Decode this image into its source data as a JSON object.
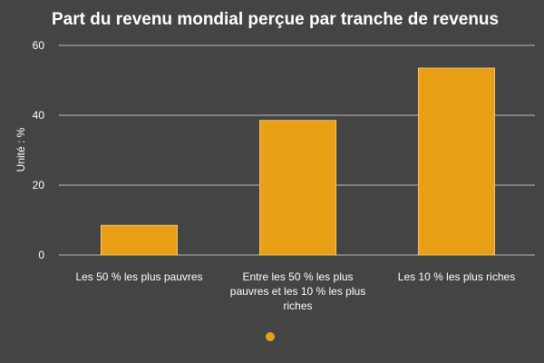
{
  "chart_data": {
    "type": "bar",
    "title": "Part du revenu mondial perçue par tranche de revenus",
    "xlabel": "",
    "ylabel": "Unité : %",
    "ylim": [
      0,
      60
    ],
    "yticks": [
      0,
      20,
      40,
      60
    ],
    "grid": true,
    "legend": "bottom",
    "bar_color": "#E9A016",
    "background_color": "#444444",
    "categories": [
      [
        "Les 50 % les plus pauvres"
      ],
      [
        "Entre les 50 % les plus",
        "pauvres et les 10 % les plus",
        "riches"
      ],
      [
        "Les 10 % les plus riches"
      ]
    ],
    "values": [
      8.5,
      38.5,
      53.5
    ]
  }
}
